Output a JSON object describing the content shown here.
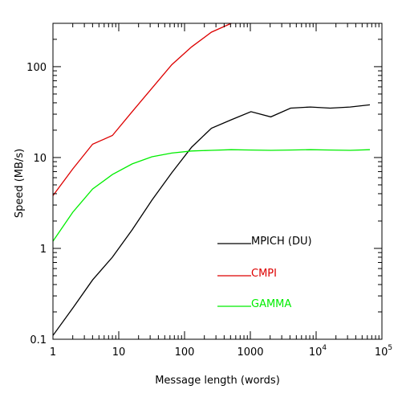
{
  "chart_data": {
    "type": "line",
    "title": "",
    "xlabel": "Message length (words)",
    "ylabel": "Speed (MB/s)",
    "x_scale": "log",
    "y_scale": "log",
    "xlim": [
      1,
      100000
    ],
    "ylim": [
      0.1,
      300
    ],
    "grid": false,
    "legend_position": "lower-right",
    "x_ticks": [
      {
        "value": 1,
        "label": "1"
      },
      {
        "value": 10,
        "label": "10"
      },
      {
        "value": 100,
        "label": "100"
      },
      {
        "value": 1000,
        "label": "1000"
      },
      {
        "value": 10000,
        "base": "10",
        "exp": "4"
      },
      {
        "value": 100000,
        "base": "10",
        "exp": "5"
      }
    ],
    "y_ticks": [
      {
        "value": 0.1,
        "label": "0.1"
      },
      {
        "value": 1,
        "label": "1"
      },
      {
        "value": 10,
        "label": "10"
      },
      {
        "value": 100,
        "label": "100"
      }
    ],
    "series": [
      {
        "name": "MPICH (DU)",
        "color": "#000000",
        "x": [
          1,
          2,
          4,
          8,
          16,
          32,
          64,
          128,
          256,
          512,
          1024,
          2048,
          4096,
          8192,
          16384,
          32768,
          65536
        ],
        "y": [
          0.11,
          0.22,
          0.45,
          0.8,
          1.6,
          3.4,
          6.8,
          13,
          21,
          26,
          32,
          28,
          35,
          36,
          35,
          36,
          38
        ]
      },
      {
        "name": "CMPI",
        "color": "#dd0000",
        "x": [
          1,
          2,
          4,
          8,
          16,
          32,
          64,
          128,
          256,
          512,
          600
        ],
        "y": [
          3.8,
          7.5,
          14,
          17.5,
          32,
          58,
          105,
          165,
          240,
          300,
          320
        ]
      },
      {
        "name": "GAMMA",
        "color": "#00ee00",
        "x": [
          1,
          2,
          4,
          8,
          16,
          32,
          64,
          128,
          256,
          512,
          1024,
          2048,
          4096,
          8192,
          16384,
          32768,
          65536
        ],
        "y": [
          1.2,
          2.5,
          4.5,
          6.5,
          8.5,
          10.2,
          11.2,
          11.8,
          12,
          12.2,
          12.1,
          12,
          12.1,
          12.2,
          12.1,
          12,
          12.2
        ]
      }
    ]
  }
}
